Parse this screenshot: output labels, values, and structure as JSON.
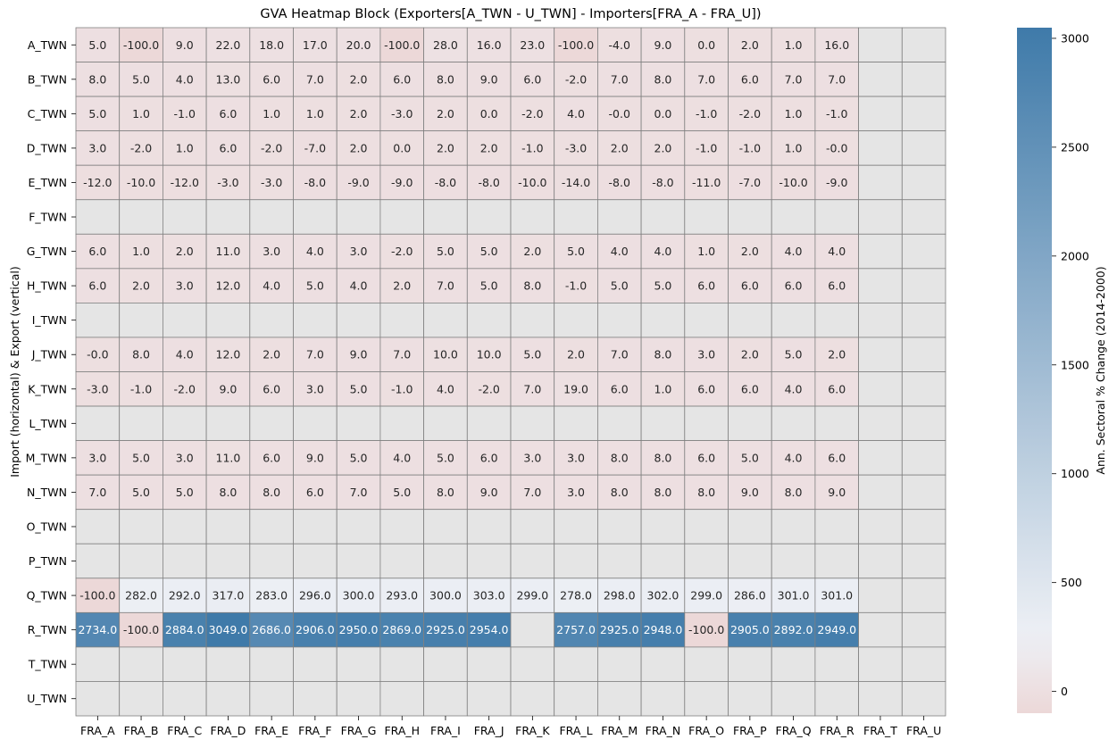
{
  "chart_data": {
    "type": "heatmap",
    "title": "GVA Heatmap Block (Exporters[A_TWN - U_TWN] - Importers[FRA_A - FRA_U])",
    "xlabel": "",
    "ylabel": "Import (horizontal) & Export (vertical)",
    "colorbar_label": "Ann. Sectoral % Change (2014-2000)",
    "x_categories": [
      "FRA_A",
      "FRA_B",
      "FRA_C",
      "FRA_D",
      "FRA_E",
      "FRA_F",
      "FRA_G",
      "FRA_H",
      "FRA_I",
      "FRA_J",
      "FRA_K",
      "FRA_L",
      "FRA_M",
      "FRA_N",
      "FRA_O",
      "FRA_P",
      "FRA_Q",
      "FRA_R",
      "FRA_T",
      "FRA_U"
    ],
    "y_categories": [
      "A_TWN",
      "B_TWN",
      "C_TWN",
      "D_TWN",
      "E_TWN",
      "F_TWN",
      "G_TWN",
      "H_TWN",
      "I_TWN",
      "J_TWN",
      "K_TWN",
      "L_TWN",
      "M_TWN",
      "N_TWN",
      "O_TWN",
      "P_TWN",
      "Q_TWN",
      "R_TWN",
      "T_TWN",
      "U_TWN"
    ],
    "values": [
      [
        5.0,
        -100.0,
        9.0,
        22.0,
        18.0,
        17.0,
        20.0,
        -100.0,
        28.0,
        16.0,
        23.0,
        -100.0,
        -4.0,
        9.0,
        0.0,
        2.0,
        1.0,
        16.0,
        null,
        null
      ],
      [
        8.0,
        5.0,
        4.0,
        13.0,
        6.0,
        7.0,
        2.0,
        6.0,
        8.0,
        9.0,
        6.0,
        -2.0,
        7.0,
        8.0,
        7.0,
        6.0,
        7.0,
        7.0,
        null,
        null
      ],
      [
        5.0,
        1.0,
        -1.0,
        6.0,
        1.0,
        1.0,
        2.0,
        -3.0,
        2.0,
        0.0,
        -2.0,
        4.0,
        -0.0,
        0.0,
        -1.0,
        -2.0,
        1.0,
        -1.0,
        null,
        null
      ],
      [
        3.0,
        -2.0,
        1.0,
        6.0,
        -2.0,
        -7.0,
        2.0,
        0.0,
        2.0,
        2.0,
        -1.0,
        -3.0,
        2.0,
        2.0,
        -1.0,
        -1.0,
        1.0,
        -0.0,
        null,
        null
      ],
      [
        -12.0,
        -10.0,
        -12.0,
        -3.0,
        -3.0,
        -8.0,
        -9.0,
        -9.0,
        -8.0,
        -8.0,
        -10.0,
        -14.0,
        -8.0,
        -8.0,
        -11.0,
        -7.0,
        -10.0,
        -9.0,
        null,
        null
      ],
      [
        null,
        null,
        null,
        null,
        null,
        null,
        null,
        null,
        null,
        null,
        null,
        null,
        null,
        null,
        null,
        null,
        null,
        null,
        null,
        null
      ],
      [
        6.0,
        1.0,
        2.0,
        11.0,
        3.0,
        4.0,
        3.0,
        -2.0,
        5.0,
        5.0,
        2.0,
        5.0,
        4.0,
        4.0,
        1.0,
        2.0,
        4.0,
        4.0,
        null,
        null
      ],
      [
        6.0,
        2.0,
        3.0,
        12.0,
        4.0,
        5.0,
        4.0,
        2.0,
        7.0,
        5.0,
        8.0,
        -1.0,
        5.0,
        5.0,
        6.0,
        6.0,
        6.0,
        6.0,
        null,
        null
      ],
      [
        null,
        null,
        null,
        null,
        null,
        null,
        null,
        null,
        null,
        null,
        null,
        null,
        null,
        null,
        null,
        null,
        null,
        null,
        null,
        null
      ],
      [
        -0.0,
        8.0,
        4.0,
        12.0,
        2.0,
        7.0,
        9.0,
        7.0,
        10.0,
        10.0,
        5.0,
        2.0,
        7.0,
        8.0,
        3.0,
        2.0,
        5.0,
        2.0,
        null,
        null
      ],
      [
        -3.0,
        -1.0,
        -2.0,
        9.0,
        6.0,
        3.0,
        5.0,
        -1.0,
        4.0,
        -2.0,
        7.0,
        19.0,
        6.0,
        1.0,
        6.0,
        6.0,
        4.0,
        6.0,
        null,
        null
      ],
      [
        null,
        null,
        null,
        null,
        null,
        null,
        null,
        null,
        null,
        null,
        null,
        null,
        null,
        null,
        null,
        null,
        null,
        null,
        null,
        null
      ],
      [
        3.0,
        5.0,
        3.0,
        11.0,
        6.0,
        9.0,
        5.0,
        4.0,
        5.0,
        6.0,
        3.0,
        3.0,
        8.0,
        8.0,
        6.0,
        5.0,
        4.0,
        6.0,
        null,
        null
      ],
      [
        7.0,
        5.0,
        5.0,
        8.0,
        8.0,
        6.0,
        7.0,
        5.0,
        8.0,
        9.0,
        7.0,
        3.0,
        8.0,
        8.0,
        8.0,
        9.0,
        8.0,
        9.0,
        null,
        null
      ],
      [
        null,
        null,
        null,
        null,
        null,
        null,
        null,
        null,
        null,
        null,
        null,
        null,
        null,
        null,
        null,
        null,
        null,
        null,
        null,
        null
      ],
      [
        null,
        null,
        null,
        null,
        null,
        null,
        null,
        null,
        null,
        null,
        null,
        null,
        null,
        null,
        null,
        null,
        null,
        null,
        null,
        null
      ],
      [
        -100.0,
        282.0,
        292.0,
        317.0,
        283.0,
        296.0,
        300.0,
        293.0,
        300.0,
        303.0,
        299.0,
        278.0,
        298.0,
        302.0,
        299.0,
        286.0,
        301.0,
        301.0,
        null,
        null
      ],
      [
        2734.0,
        -100.0,
        2884.0,
        3049.0,
        2686.0,
        2906.0,
        2950.0,
        2869.0,
        2925.0,
        2954.0,
        null,
        2757.0,
        2925.0,
        2948.0,
        -100.0,
        2905.0,
        2892.0,
        2949.0,
        null,
        null
      ],
      [
        null,
        null,
        null,
        null,
        null,
        null,
        null,
        null,
        null,
        null,
        null,
        null,
        null,
        null,
        null,
        null,
        null,
        null,
        null,
        null
      ],
      [
        null,
        null,
        null,
        null,
        null,
        null,
        null,
        null,
        null,
        null,
        null,
        null,
        null,
        null,
        null,
        null,
        null,
        null,
        null,
        null
      ]
    ],
    "value_format": "one decimal",
    "colorbar": {
      "vmin": -100,
      "vmax": 3049,
      "center": 250,
      "ticks": [
        0,
        500,
        1000,
        1500,
        2000,
        2500,
        3000
      ],
      "colors": {
        "low": "#ecd8d8",
        "mid": "#eef0f5",
        "high": "#3f7aa9"
      }
    },
    "missing_color": "#e5e5e5",
    "grid_color": "#808080",
    "grid": true,
    "legend": "colorbar-right"
  }
}
